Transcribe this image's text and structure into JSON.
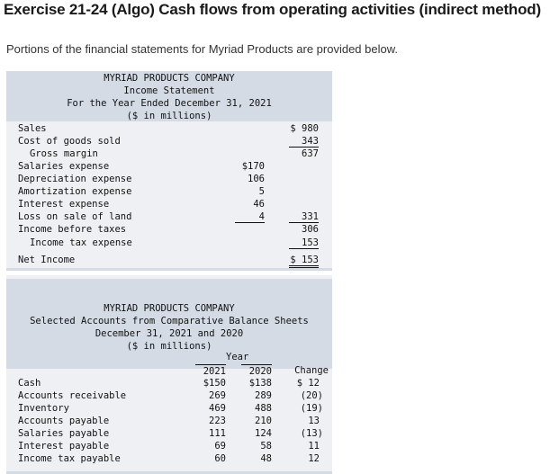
{
  "header": {
    "title": "Exercise 21-24 (Algo) Cash flows from operating activities (indirect method)",
    "intro": "Portions of the financial statements for Myriad Products are provided below."
  },
  "income_statement": {
    "company": "MYRIAD PRODUCTS COMPANY",
    "name": "Income Statement",
    "period": "For the Year Ended December 31, 2021",
    "units": "($ in millions)",
    "rows": [
      {
        "label": "Sales",
        "col1": "",
        "col2": "$ 980"
      },
      {
        "label": "Cost of goods sold",
        "col1": "",
        "col2": "343"
      },
      {
        "label": "Gross margin",
        "col1": "",
        "col2": "637"
      },
      {
        "label": "Salaries expense",
        "col1": "$170",
        "col2": ""
      },
      {
        "label": "Depreciation expense",
        "col1": "106",
        "col2": ""
      },
      {
        "label": "Amortization expense",
        "col1": "5",
        "col2": ""
      },
      {
        "label": "Interest expense",
        "col1": "46",
        "col2": ""
      },
      {
        "label": "Loss on sale of land",
        "col1": "4",
        "col2": "331"
      },
      {
        "label": "Income before taxes",
        "col1": "",
        "col2": "306"
      },
      {
        "label": "Income tax expense",
        "col1": "",
        "col2": "153"
      },
      {
        "label": "Net Income",
        "col1": "",
        "col2": "$ 153"
      }
    ]
  },
  "balance_sheet": {
    "company": "MYRIAD PRODUCTS COMPANY",
    "name": "Selected Accounts from Comparative Balance Sheets",
    "period": "December 31, 2021 and 2020",
    "units": "($ in millions)",
    "year_header": "Year",
    "columns": [
      "2021",
      "2020",
      "Change"
    ],
    "rows": [
      {
        "label": "Cash",
        "y2021": "$150",
        "y2020": "$138",
        "change": "$ 12"
      },
      {
        "label": "Accounts receivable",
        "y2021": "269",
        "y2020": "289",
        "change": "(20)"
      },
      {
        "label": "Inventory",
        "y2021": "469",
        "y2020": "488",
        "change": "(19)"
      },
      {
        "label": "Accounts payable",
        "y2021": "223",
        "y2020": "210",
        "change": "13"
      },
      {
        "label": "Salaries payable",
        "y2021": "111",
        "y2020": "124",
        "change": "(13)"
      },
      {
        "label": "Interest payable",
        "y2021": "69",
        "y2020": "58",
        "change": "11"
      },
      {
        "label": "Income tax payable",
        "y2021": "60",
        "y2020": "48",
        "change": "12"
      }
    ]
  }
}
